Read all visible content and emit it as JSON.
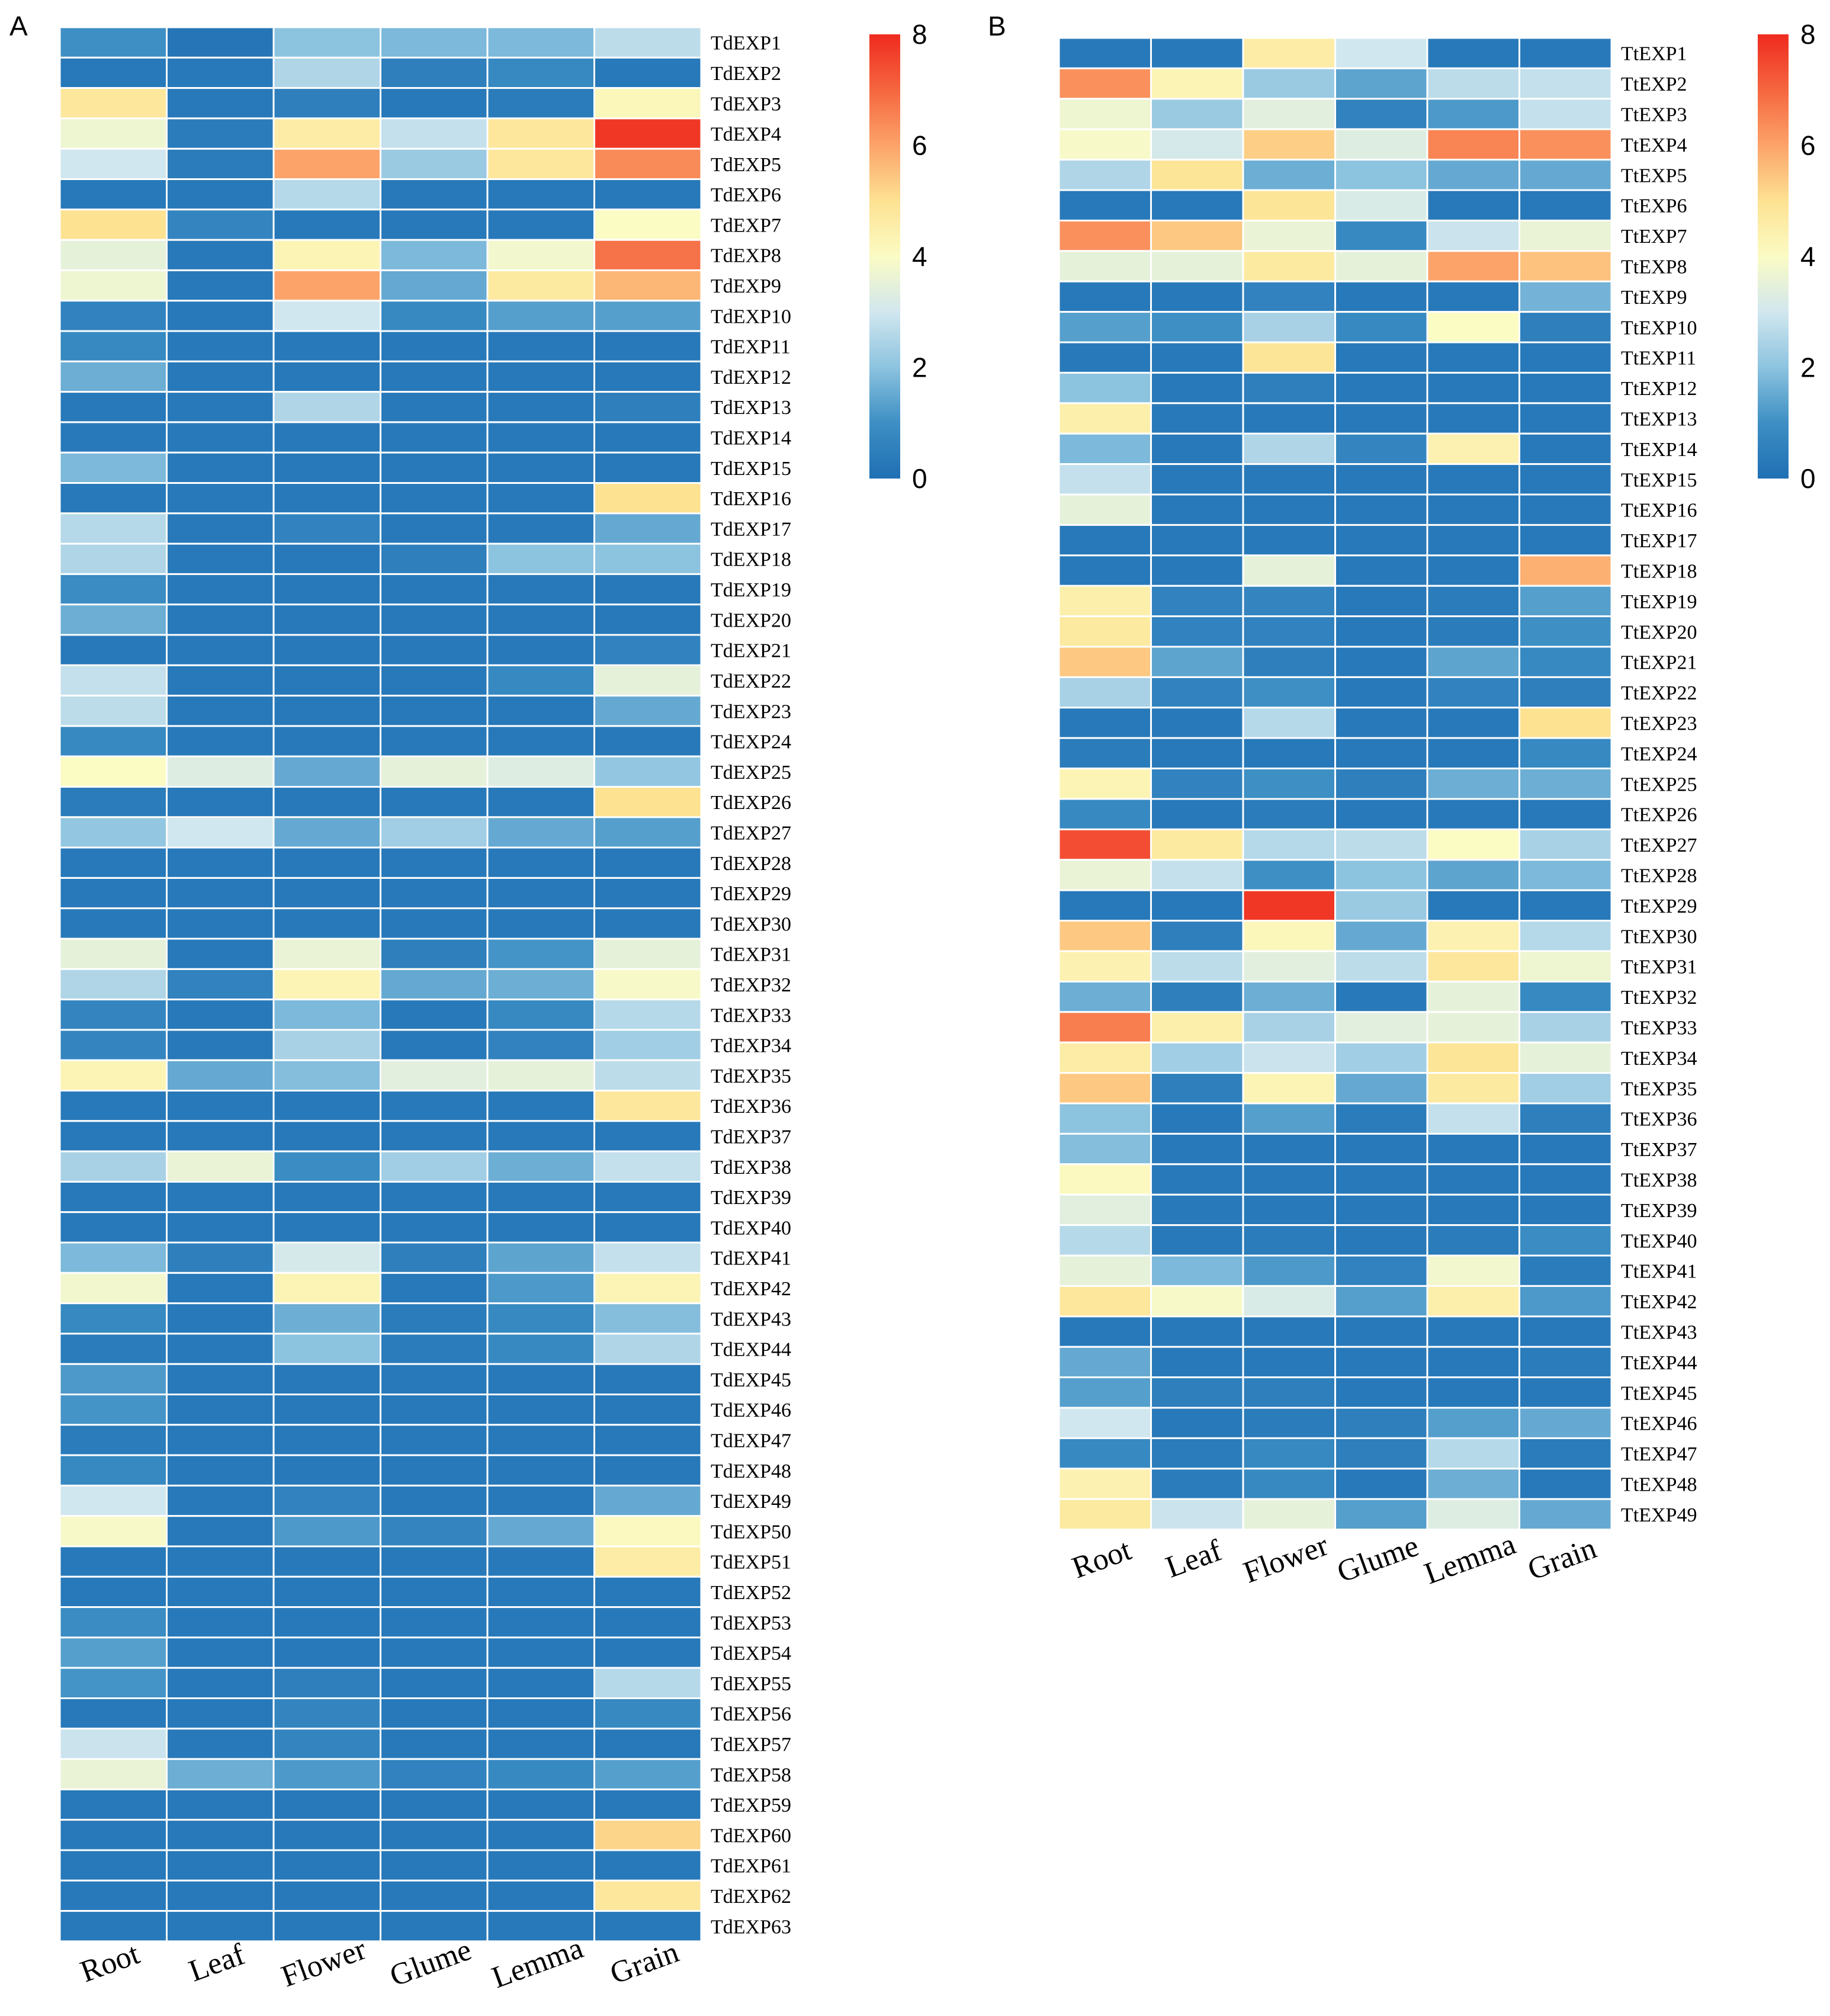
{
  "chart_data": [
    {
      "type": "heatmap",
      "panel": "A",
      "columns": [
        "Root",
        "Leaf",
        "Flower",
        "Glume",
        "Lemma",
        "Grain"
      ],
      "rows": [
        "TdEXP1",
        "TdEXP2",
        "TdEXP3",
        "TdEXP4",
        "TdEXP5",
        "TdEXP6",
        "TdEXP7",
        "TdEXP8",
        "TdEXP9",
        "TdEXP10",
        "TdEXP11",
        "TdEXP12",
        "TdEXP13",
        "TdEXP14",
        "TdEXP15",
        "TdEXP16",
        "TdEXP17",
        "TdEXP18",
        "TdEXP19",
        "TdEXP20",
        "TdEXP21",
        "TdEXP22",
        "TdEXP23",
        "TdEXP24",
        "TdEXP25",
        "TdEXP26",
        "TdEXP27",
        "TdEXP28",
        "TdEXP29",
        "TdEXP30",
        "TdEXP31",
        "TdEXP32",
        "TdEXP33",
        "TdEXP34",
        "TdEXP35",
        "TdEXP36",
        "TdEXP37",
        "TdEXP38",
        "TdEXP39",
        "TdEXP40",
        "TdEXP41",
        "TdEXP42",
        "TdEXP43",
        "TdEXP44",
        "TdEXP45",
        "TdEXP46",
        "TdEXP47",
        "TdEXP48",
        "TdEXP49",
        "TdEXP50",
        "TdEXP51",
        "TdEXP52",
        "TdEXP53",
        "TdEXP54",
        "TdEXP55",
        "TdEXP56",
        "TdEXP57",
        "TdEXP58",
        "TdEXP59",
        "TdEXP60",
        "TdEXP61",
        "TdEXP62",
        "TdEXP63"
      ],
      "values": [
        [
          1.0,
          0.2,
          2.0,
          1.8,
          1.8,
          2.7
        ],
        [
          0.3,
          0.3,
          2.5,
          0.5,
          0.8,
          0.3
        ],
        [
          4.8,
          0.3,
          0.5,
          0.3,
          0.4,
          4.2
        ],
        [
          3.7,
          0.4,
          4.6,
          2.8,
          4.8,
          7.8
        ],
        [
          3.0,
          0.4,
          6.0,
          2.2,
          4.8,
          6.4
        ],
        [
          0.3,
          0.3,
          2.6,
          0.3,
          0.3,
          0.3
        ],
        [
          5.0,
          0.7,
          0.3,
          0.3,
          0.3,
          4.0
        ],
        [
          3.5,
          0.3,
          4.3,
          1.8,
          3.8,
          6.8
        ],
        [
          3.7,
          0.3,
          6.0,
          1.5,
          4.7,
          5.7
        ],
        [
          0.6,
          0.3,
          3.0,
          0.8,
          1.3,
          1.3
        ],
        [
          0.8,
          0.3,
          0.3,
          0.3,
          0.3,
          0.3
        ],
        [
          1.6,
          0.3,
          0.3,
          0.3,
          0.3,
          0.3
        ],
        [
          0.3,
          0.3,
          2.5,
          0.3,
          0.3,
          0.5
        ],
        [
          0.3,
          0.3,
          0.3,
          0.3,
          0.3,
          0.3
        ],
        [
          1.8,
          0.3,
          0.3,
          0.3,
          0.3,
          0.3
        ],
        [
          0.3,
          0.3,
          0.3,
          0.3,
          0.3,
          5.0
        ],
        [
          2.6,
          0.3,
          0.6,
          0.3,
          0.3,
          1.5
        ],
        [
          2.5,
          0.3,
          0.3,
          0.5,
          2.0,
          2.0
        ],
        [
          0.9,
          0.3,
          0.3,
          0.3,
          0.3,
          0.3
        ],
        [
          1.6,
          0.3,
          0.3,
          0.3,
          0.3,
          0.3
        ],
        [
          0.3,
          0.3,
          0.3,
          0.3,
          0.3,
          0.6
        ],
        [
          2.8,
          0.3,
          0.3,
          0.3,
          0.8,
          3.5
        ],
        [
          2.7,
          0.3,
          0.3,
          0.3,
          0.3,
          1.5
        ],
        [
          0.8,
          0.3,
          0.3,
          0.3,
          0.3,
          0.3
        ],
        [
          4.0,
          3.3,
          1.5,
          3.5,
          3.3,
          2.1
        ],
        [
          0.4,
          0.3,
          0.3,
          0.3,
          0.3,
          5.0
        ],
        [
          2.1,
          3.0,
          1.5,
          2.3,
          1.5,
          1.3
        ],
        [
          0.3,
          0.3,
          0.3,
          0.3,
          0.3,
          0.3
        ],
        [
          0.3,
          0.3,
          0.3,
          0.3,
          0.3,
          0.3
        ],
        [
          0.3,
          0.3,
          0.3,
          0.3,
          0.3,
          0.3
        ],
        [
          3.5,
          0.3,
          3.6,
          0.5,
          1.1,
          3.5
        ],
        [
          2.5,
          0.6,
          4.3,
          1.5,
          1.6,
          3.9
        ],
        [
          0.7,
          0.3,
          1.8,
          0.3,
          0.8,
          2.6
        ],
        [
          0.7,
          0.3,
          2.4,
          0.3,
          0.6,
          2.3
        ],
        [
          4.3,
          1.5,
          1.9,
          3.4,
          3.5,
          2.7
        ],
        [
          0.3,
          0.3,
          0.3,
          0.3,
          0.3,
          4.8
        ],
        [
          0.3,
          0.3,
          0.3,
          0.3,
          0.3,
          0.3
        ],
        [
          2.4,
          3.6,
          0.9,
          2.3,
          1.6,
          2.8
        ],
        [
          0.3,
          0.3,
          0.3,
          0.3,
          0.3,
          0.3
        ],
        [
          0.3,
          0.3,
          0.3,
          0.3,
          0.3,
          0.3
        ],
        [
          1.8,
          0.5,
          3.1,
          0.5,
          1.4,
          2.8
        ],
        [
          3.8,
          0.3,
          4.3,
          0.3,
          1.2,
          4.3
        ],
        [
          0.8,
          0.3,
          1.6,
          0.4,
          0.8,
          1.9
        ],
        [
          0.4,
          0.3,
          2.0,
          0.4,
          0.8,
          2.5
        ],
        [
          1.2,
          0.3,
          0.3,
          0.3,
          0.3,
          0.3
        ],
        [
          1.1,
          0.3,
          0.3,
          0.3,
          0.3,
          0.3
        ],
        [
          0.4,
          0.3,
          0.3,
          0.3,
          0.3,
          0.3
        ],
        [
          0.8,
          0.3,
          0.3,
          0.3,
          0.3,
          0.3
        ],
        [
          3.0,
          0.3,
          0.6,
          0.3,
          0.3,
          1.5
        ],
        [
          3.9,
          0.3,
          1.2,
          0.7,
          1.5,
          4.1
        ],
        [
          0.3,
          0.3,
          0.3,
          0.3,
          0.3,
          4.6
        ],
        [
          0.3,
          0.3,
          0.3,
          0.3,
          0.3,
          0.3
        ],
        [
          0.9,
          0.3,
          0.3,
          0.3,
          0.3,
          0.3
        ],
        [
          1.3,
          0.3,
          0.3,
          0.3,
          0.3,
          0.3
        ],
        [
          1.1,
          0.3,
          0.5,
          0.3,
          0.3,
          2.6
        ],
        [
          0.3,
          0.3,
          0.7,
          0.3,
          0.3,
          0.8
        ],
        [
          2.9,
          0.3,
          0.7,
          0.3,
          0.3,
          0.3
        ],
        [
          3.6,
          1.6,
          1.2,
          0.6,
          0.8,
          1.3
        ],
        [
          0.3,
          0.3,
          0.3,
          0.3,
          0.3,
          0.3
        ],
        [
          0.3,
          0.3,
          0.3,
          0.3,
          0.3,
          5.2
        ],
        [
          0.3,
          0.3,
          0.3,
          0.3,
          0.3,
          0.3
        ],
        [
          0.3,
          0.3,
          0.3,
          0.3,
          0.3,
          4.8
        ],
        [
          0.3,
          0.3,
          0.3,
          0.3,
          0.3,
          0.3
        ]
      ],
      "colorbar": {
        "min": 0,
        "max": 8,
        "ticks": [
          8,
          6,
          4,
          2,
          0
        ]
      }
    },
    {
      "type": "heatmap",
      "panel": "B",
      "columns": [
        "Root",
        "Leaf",
        "Flower",
        "Glume",
        "Lemma",
        "Grain"
      ],
      "rows": [
        "TtEXP1",
        "TtEXP2",
        "TtEXP3",
        "TtEXP4",
        "TtEXP5",
        "TtEXP6",
        "TtEXP7",
        "TtEXP8",
        "TtEXP9",
        "TtEXP10",
        "TtEXP11",
        "TtEXP12",
        "TtEXP13",
        "TtEXP14",
        "TtEXP15",
        "TtEXP16",
        "TtEXP17",
        "TtEXP18",
        "TtEXP19",
        "TtEXP20",
        "TtEXP21",
        "TtEXP22",
        "TtEXP23",
        "TtEXP24",
        "TtEXP25",
        "TtEXP26",
        "TtEXP27",
        "TtEXP28",
        "TtEXP29",
        "TtEXP30",
        "TtEXP31",
        "TtEXP32",
        "TtEXP33",
        "TtEXP34",
        "TtEXP35",
        "TtEXP36",
        "TtEXP37",
        "TtEXP38",
        "TtEXP39",
        "TtEXP40",
        "TtEXP41",
        "TtEXP42",
        "TtEXP43",
        "TtEXP44",
        "TtEXP45",
        "TtEXP46",
        "TtEXP47",
        "TtEXP48",
        "TtEXP49"
      ],
      "values": [
        [
          0.3,
          0.3,
          4.6,
          3.0,
          0.3,
          0.3
        ],
        [
          6.3,
          4.3,
          2.2,
          1.4,
          2.7,
          2.8
        ],
        [
          3.7,
          2.2,
          3.4,
          0.6,
          1.2,
          2.8
        ],
        [
          3.9,
          3.1,
          5.3,
          3.3,
          6.5,
          6.3
        ],
        [
          2.5,
          4.9,
          1.6,
          2.0,
          1.5,
          1.5
        ],
        [
          0.3,
          0.3,
          4.9,
          3.2,
          0.3,
          0.3
        ],
        [
          6.3,
          5.4,
          3.6,
          0.8,
          2.9,
          3.6
        ],
        [
          3.5,
          3.5,
          4.7,
          3.5,
          6.0,
          5.5
        ],
        [
          0.3,
          0.3,
          0.6,
          0.3,
          0.3,
          1.7
        ],
        [
          1.3,
          1.0,
          2.4,
          0.8,
          4.0,
          0.5
        ],
        [
          0.3,
          0.3,
          4.9,
          0.3,
          0.3,
          0.3
        ],
        [
          2.0,
          0.3,
          0.5,
          0.3,
          0.3,
          0.3
        ],
        [
          4.5,
          0.3,
          0.3,
          0.3,
          0.3,
          0.3
        ],
        [
          1.8,
          0.3,
          2.5,
          0.7,
          4.4,
          0.3
        ],
        [
          2.8,
          0.3,
          0.3,
          0.3,
          0.3,
          0.3
        ],
        [
          3.5,
          0.3,
          0.3,
          0.3,
          0.3,
          0.3
        ],
        [
          0.3,
          0.3,
          0.3,
          0.3,
          0.3,
          0.3
        ],
        [
          0.3,
          0.3,
          3.5,
          0.3,
          0.3,
          5.8
        ],
        [
          4.5,
          0.6,
          0.7,
          0.3,
          0.4,
          1.3
        ],
        [
          4.7,
          0.6,
          0.6,
          0.3,
          0.4,
          1.0
        ],
        [
          5.4,
          1.4,
          0.5,
          0.3,
          1.4,
          0.8
        ],
        [
          2.4,
          0.6,
          1.0,
          0.3,
          0.6,
          0.5
        ],
        [
          0.3,
          0.3,
          2.6,
          0.3,
          0.3,
          5.0
        ],
        [
          0.4,
          0.3,
          0.3,
          0.3,
          0.3,
          0.8
        ],
        [
          4.3,
          0.6,
          1.0,
          0.5,
          1.6,
          1.6
        ],
        [
          0.8,
          0.3,
          0.4,
          0.3,
          0.3,
          0.3
        ],
        [
          7.4,
          4.7,
          2.6,
          2.7,
          4.0,
          2.4
        ],
        [
          3.6,
          2.8,
          1.0,
          2.0,
          1.4,
          1.8
        ],
        [
          0.3,
          0.3,
          7.8,
          2.2,
          0.3,
          0.3
        ],
        [
          5.4,
          0.5,
          4.2,
          1.5,
          4.4,
          2.6
        ],
        [
          4.4,
          2.7,
          3.4,
          2.7,
          4.8,
          3.7
        ],
        [
          1.6,
          0.5,
          1.6,
          0.3,
          3.5,
          0.8
        ],
        [
          6.6,
          4.5,
          2.4,
          3.4,
          3.5,
          2.4
        ],
        [
          4.6,
          2.3,
          2.9,
          2.3,
          4.9,
          3.5
        ],
        [
          5.4,
          0.5,
          4.3,
          1.5,
          4.7,
          2.3
        ],
        [
          2.0,
          0.3,
          1.3,
          0.4,
          2.8,
          0.5
        ],
        [
          1.9,
          0.3,
          0.3,
          0.3,
          0.3,
          0.3
        ],
        [
          4.1,
          0.3,
          0.3,
          0.3,
          0.3,
          0.3
        ],
        [
          3.4,
          0.3,
          0.3,
          0.3,
          0.3,
          0.3
        ],
        [
          2.6,
          0.3,
          0.4,
          0.3,
          0.4,
          0.9
        ],
        [
          3.5,
          1.8,
          1.2,
          0.6,
          3.8,
          0.4
        ],
        [
          4.8,
          3.9,
          3.2,
          1.3,
          4.5,
          1.2
        ],
        [
          0.3,
          0.3,
          0.3,
          0.3,
          0.3,
          0.3
        ],
        [
          1.5,
          0.3,
          0.3,
          0.3,
          0.3,
          0.4
        ],
        [
          1.3,
          0.5,
          0.5,
          0.3,
          0.3,
          0.3
        ],
        [
          3.0,
          0.3,
          0.4,
          0.5,
          1.3,
          1.5
        ],
        [
          0.8,
          0.4,
          0.8,
          0.5,
          2.6,
          0.4
        ],
        [
          4.4,
          0.4,
          0.8,
          0.3,
          1.6,
          0.3
        ],
        [
          4.7,
          2.9,
          3.5,
          1.3,
          3.3,
          1.5
        ]
      ],
      "colorbar": {
        "min": 0,
        "max": 8,
        "ticks": [
          8,
          6,
          4,
          2,
          0
        ]
      }
    }
  ],
  "panels": {
    "a_label": "A",
    "b_label": "B"
  },
  "colors": {
    "low": "#1f6fb4",
    "mid": "#fbfbc4",
    "high": "#ef2b20",
    "grid_line": "#ffffff"
  }
}
